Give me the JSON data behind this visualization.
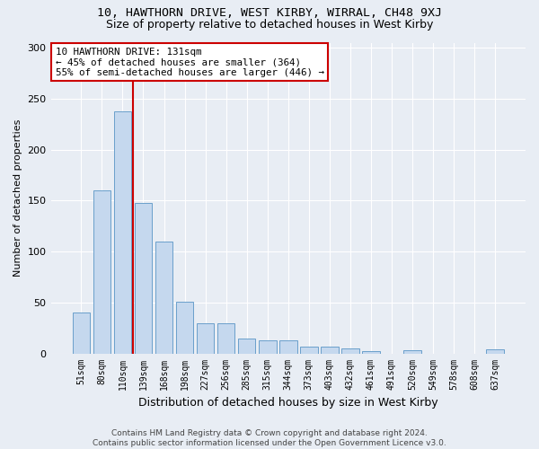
{
  "title": "10, HAWTHORN DRIVE, WEST KIRBY, WIRRAL, CH48 9XJ",
  "subtitle": "Size of property relative to detached houses in West Kirby",
  "xlabel": "Distribution of detached houses by size in West Kirby",
  "ylabel": "Number of detached properties",
  "categories": [
    "51sqm",
    "80sqm",
    "110sqm",
    "139sqm",
    "168sqm",
    "198sqm",
    "227sqm",
    "256sqm",
    "285sqm",
    "315sqm",
    "344sqm",
    "373sqm",
    "403sqm",
    "432sqm",
    "461sqm",
    "491sqm",
    "520sqm",
    "549sqm",
    "578sqm",
    "608sqm",
    "637sqm"
  ],
  "values": [
    40,
    160,
    238,
    148,
    110,
    51,
    30,
    30,
    15,
    13,
    13,
    7,
    7,
    5,
    2,
    0,
    3,
    0,
    0,
    0,
    4
  ],
  "bar_color": "#c5d8ee",
  "bar_edge_color": "#6a9fcb",
  "bg_color": "#e8edf4",
  "grid_color": "#ffffff",
  "vline_x": 2.5,
  "vline_color": "#cc0000",
  "annotation_text": "10 HAWTHORN DRIVE: 131sqm\n← 45% of detached houses are smaller (364)\n55% of semi-detached houses are larger (446) →",
  "annotation_border_color": "#cc0000",
  "footer_text": "Contains HM Land Registry data © Crown copyright and database right 2024.\nContains public sector information licensed under the Open Government Licence v3.0.",
  "ylim": [
    0,
    305
  ],
  "title_fontsize": 9.5,
  "subtitle_fontsize": 9,
  "annotation_fontsize": 7.8,
  "ylabel_fontsize": 8,
  "xlabel_fontsize": 9,
  "tick_fontsize": 7,
  "footer_fontsize": 6.5
}
